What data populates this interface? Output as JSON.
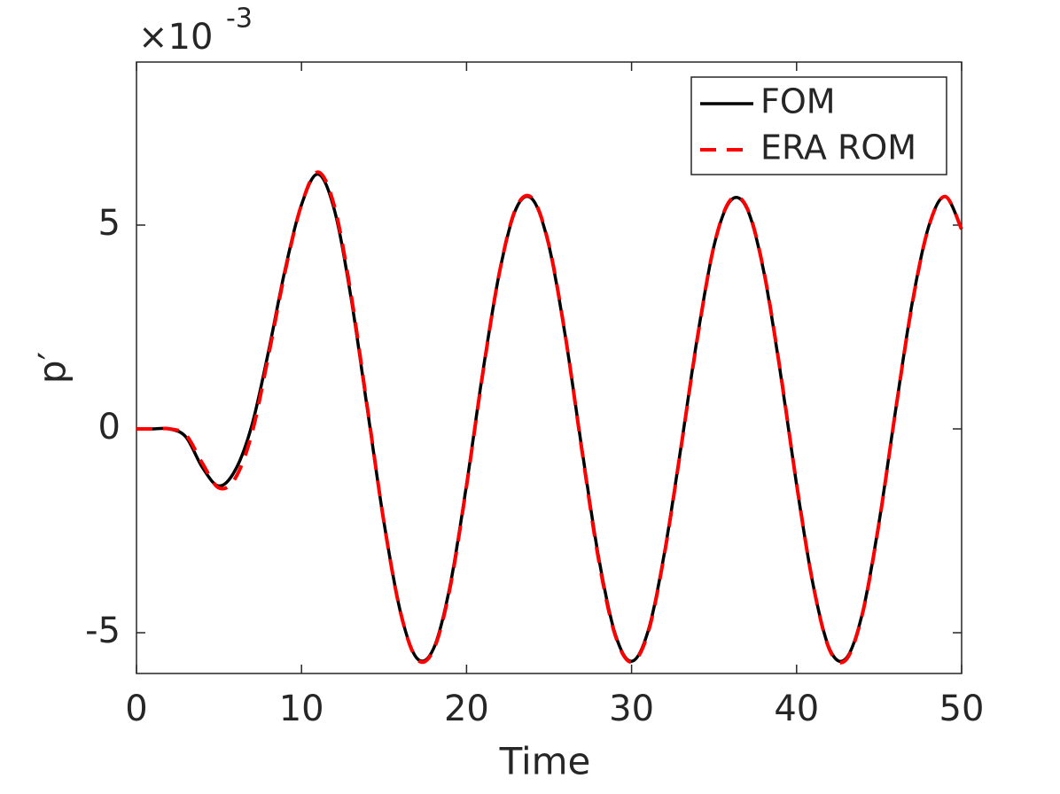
{
  "chart_data": {
    "type": "line",
    "xlabel": "Time",
    "ylabel": "p′",
    "y_multiplier": "×10",
    "y_exponent": "-3",
    "x": [
      0,
      1,
      2,
      3,
      4,
      5,
      6,
      7,
      8,
      9,
      10,
      11,
      12,
      13,
      14,
      15,
      16,
      17,
      18,
      19,
      20,
      21,
      22,
      23,
      24,
      25,
      26,
      27,
      28,
      29,
      30,
      31,
      32,
      33,
      34,
      35,
      36,
      37,
      38,
      39,
      40,
      41,
      42,
      43,
      44,
      45,
      46,
      47,
      48,
      49,
      50
    ],
    "series": [
      {
        "name": "FOM",
        "color": "#000000",
        "dash": false,
        "values": [
          0,
          0,
          0,
          -0.2,
          -0.95,
          -1.4,
          -1.0,
          0.1,
          1.9,
          3.9,
          5.5,
          6.25,
          5.36,
          3.22,
          0.46,
          -2.3,
          -4.5,
          -5.63,
          -5.39,
          -3.85,
          -1.37,
          1.43,
          3.85,
          5.4,
          5.63,
          4.48,
          2.24,
          -0.52,
          -3.14,
          -5.02,
          -5.7,
          -4.96,
          -3.02,
          -0.43,
          2.28,
          4.5,
          5.6,
          5.4,
          3.88,
          1.43,
          -1.37,
          -3.82,
          -5.4,
          -5.63,
          -4.5,
          -2.28,
          0.46,
          3.08,
          4.96,
          5.7,
          4.9
        ]
      },
      {
        "name": "ERA ROM",
        "color": "#ff0000",
        "dash": true,
        "values": [
          0,
          0,
          0,
          -0.15,
          -0.85,
          -1.45,
          -1.2,
          -0.1,
          1.8,
          3.85,
          5.5,
          6.3,
          5.45,
          3.3,
          0.5,
          -2.3,
          -4.5,
          -5.65,
          -5.42,
          -3.9,
          -1.4,
          1.4,
          3.85,
          5.42,
          5.65,
          4.5,
          2.25,
          -0.55,
          -3.2,
          -5.05,
          -5.72,
          -5.0,
          -3.05,
          -0.45,
          2.25,
          4.5,
          5.62,
          5.42,
          3.9,
          1.45,
          -1.35,
          -3.82,
          -5.42,
          -5.66,
          -4.52,
          -2.3,
          0.45,
          3.05,
          4.95,
          5.7,
          4.9
        ]
      }
    ],
    "xlim": [
      0,
      50
    ],
    "xticks": [
      0,
      10,
      20,
      30,
      40,
      50
    ],
    "ylim": [
      -6,
      9
    ],
    "yticks": [
      -5,
      0,
      5
    ],
    "legend": "northeast",
    "box": true
  }
}
